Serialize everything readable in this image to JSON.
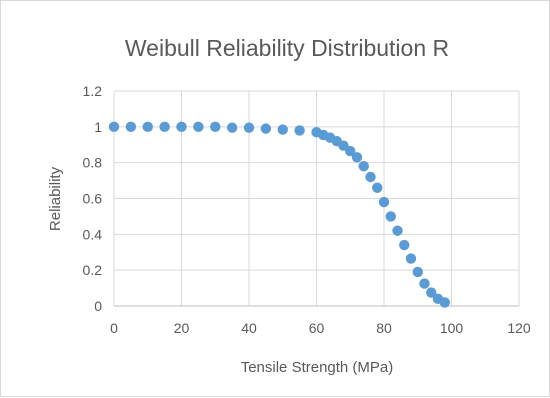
{
  "chart_data": {
    "type": "scatter",
    "title": "Weibull Reliability Distribution R",
    "xlabel": "Tensile Strength (MPa)",
    "ylabel": "Reliability",
    "xlim": [
      0,
      120
    ],
    "ylim": [
      0,
      1.2
    ],
    "xticks": [
      "0",
      "20",
      "40",
      "60",
      "80",
      "100",
      "120"
    ],
    "yticks": [
      "0",
      "0.2",
      "0.4",
      "0.6",
      "0.8",
      "1",
      "1.2"
    ],
    "grid": true,
    "legend": "none",
    "series": [
      {
        "color": "#5b9bd5",
        "x": [
          0,
          5,
          10,
          15,
          20,
          25,
          30,
          35,
          40,
          45,
          50,
          55,
          60,
          62,
          64,
          66,
          68,
          70,
          72,
          74,
          76,
          78,
          80,
          82,
          84,
          86,
          88,
          90,
          92,
          94,
          96,
          98
        ],
        "y": [
          1.0,
          1.0,
          1.0,
          1.0,
          1.0,
          1.0,
          1.0,
          0.995,
          0.995,
          0.99,
          0.985,
          0.98,
          0.97,
          0.955,
          0.94,
          0.92,
          0.895,
          0.865,
          0.83,
          0.78,
          0.72,
          0.66,
          0.58,
          0.5,
          0.42,
          0.34,
          0.265,
          0.19,
          0.125,
          0.075,
          0.04,
          0.02
        ]
      }
    ]
  }
}
